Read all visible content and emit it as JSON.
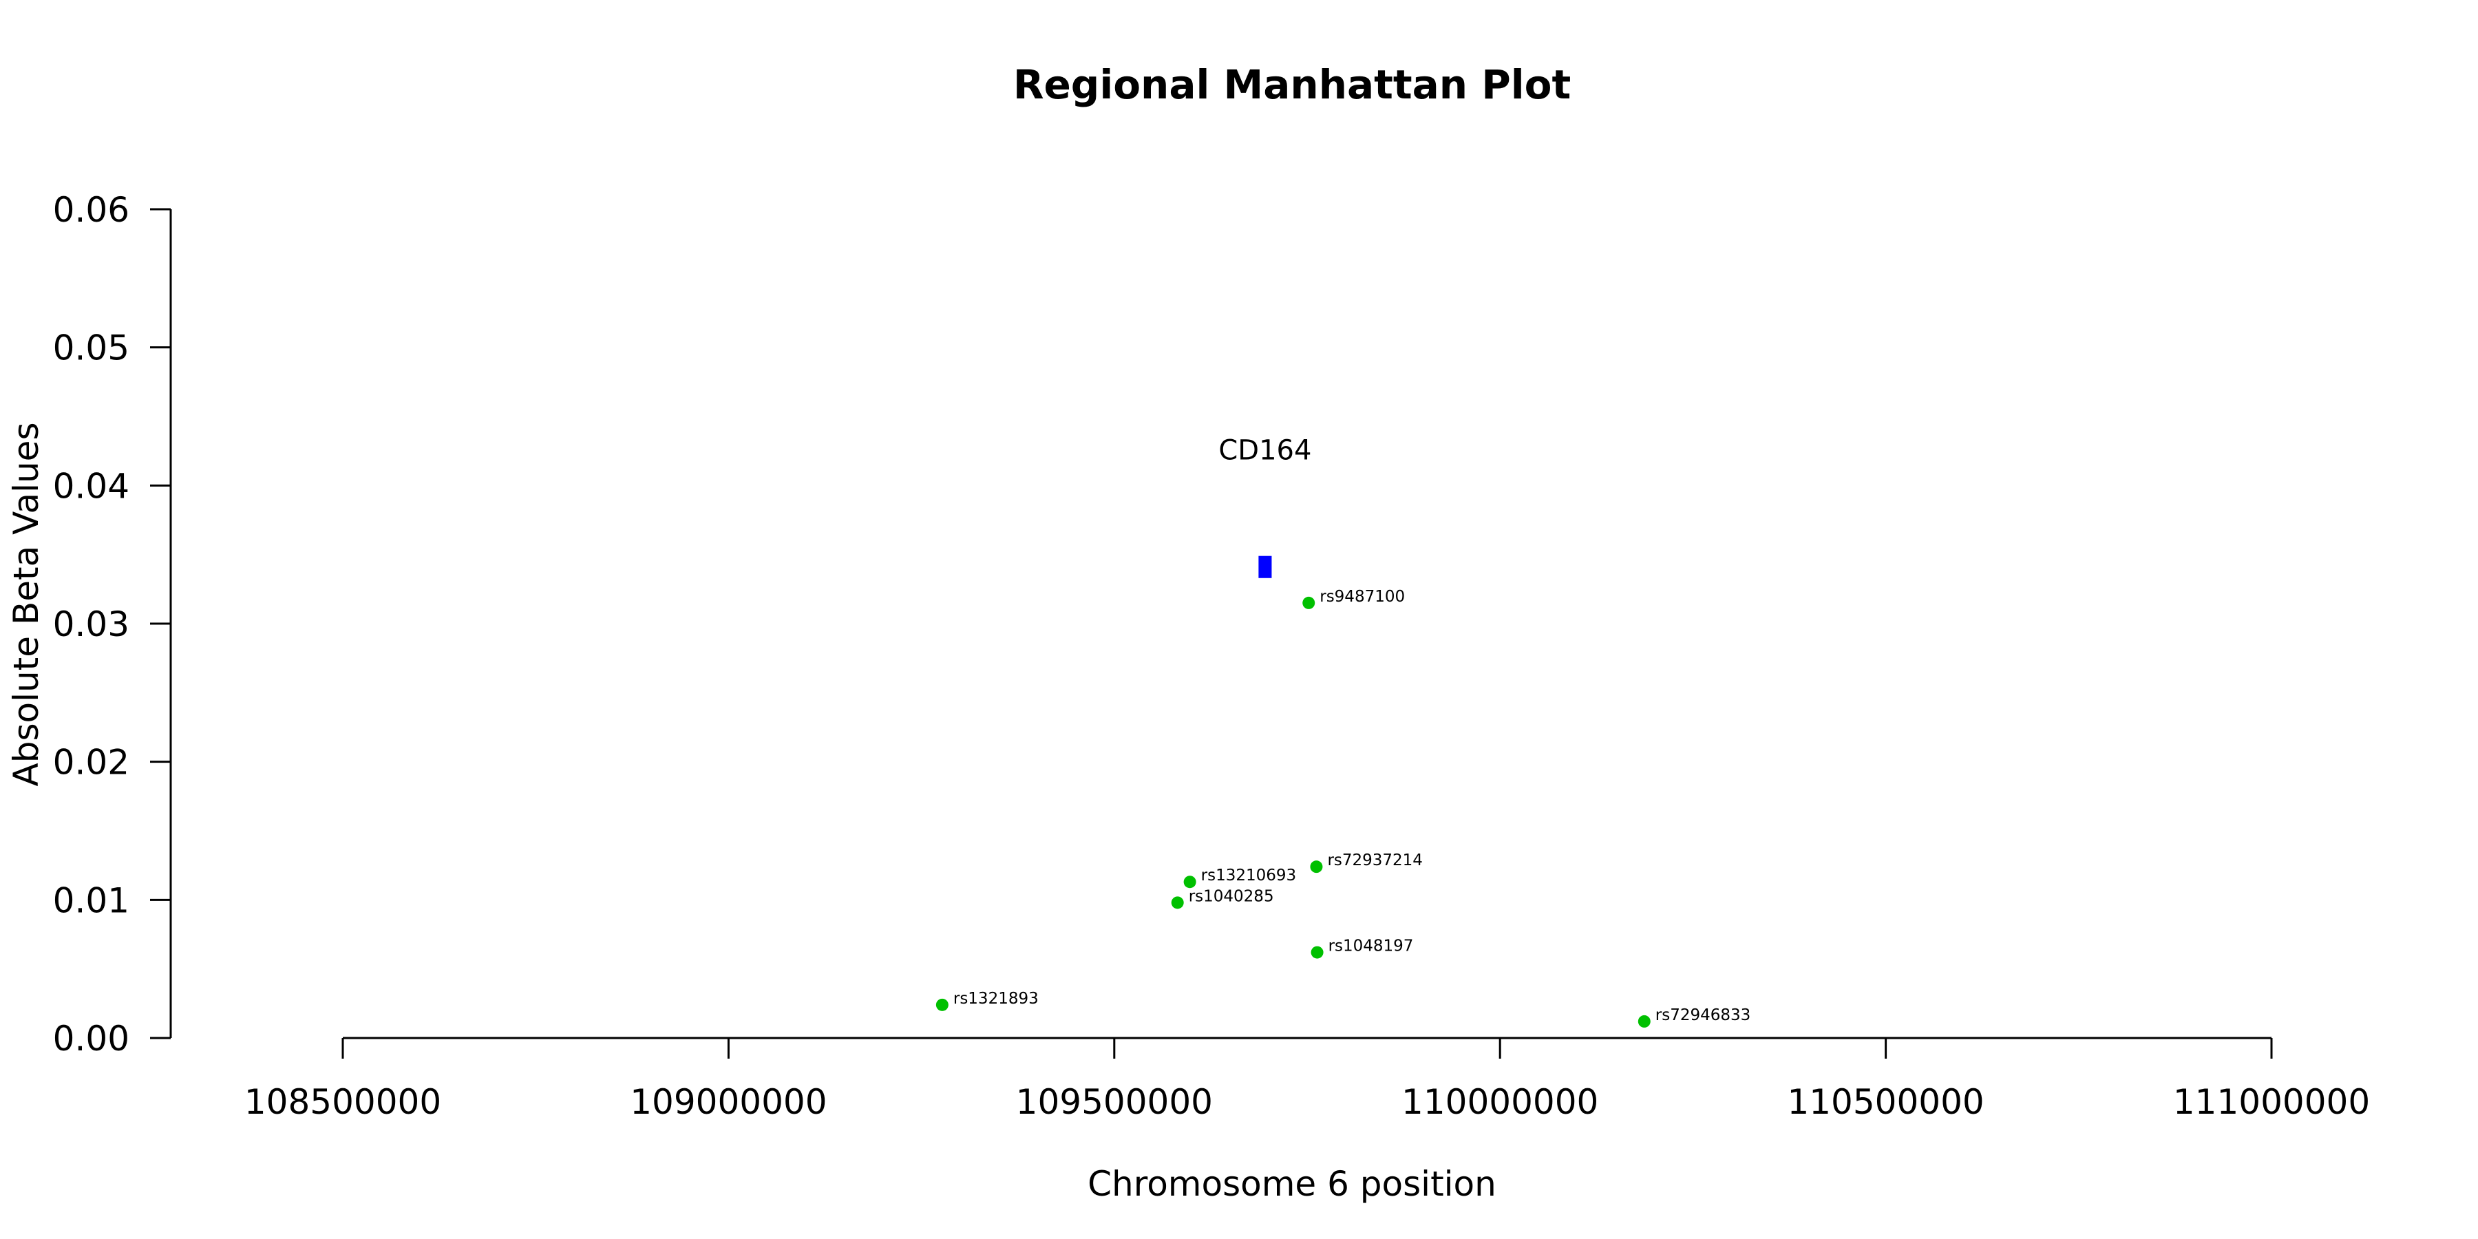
{
  "chart_data": {
    "type": "scatter",
    "title": "Regional Manhattan Plot",
    "xlabel": "Chromosome 6 position",
    "ylabel": "Absolute Beta Values",
    "xlim": [
      108500000,
      111000000
    ],
    "ylim": [
      0,
      0.06
    ],
    "x_ticks": [
      108500000,
      109000000,
      109500000,
      110000000,
      110500000,
      111000000
    ],
    "x_tick_labels": [
      "108500000",
      "109000000",
      "109500000",
      "110000000",
      "110500000",
      "111000000"
    ],
    "y_ticks": [
      0,
      0.01,
      0.02,
      0.03,
      0.04,
      0.05,
      0.06
    ],
    "y_tick_labels": [
      "0.00",
      "0.01",
      "0.02",
      "0.03",
      "0.04",
      "0.05",
      "0.06"
    ],
    "grid": false,
    "legend": "none",
    "colors": {
      "snp": "#00c000",
      "gene": "#0000ff"
    },
    "gene": {
      "name": "CD164",
      "x_start": 109687000,
      "x_end": 109704000,
      "y_low": 0.0333,
      "y_high": 0.0349
    },
    "points": [
      {
        "id": "rs9487100",
        "x": 109752000,
        "y": 0.0315
      },
      {
        "id": "rs72937214",
        "x": 109762000,
        "y": 0.0124
      },
      {
        "id": "rs13210693",
        "x": 109598000,
        "y": 0.0113
      },
      {
        "id": "rs1040285",
        "x": 109582000,
        "y": 0.0098
      },
      {
        "id": "rs1048197",
        "x": 109763000,
        "y": 0.0062
      },
      {
        "id": "rs1321893",
        "x": 109277000,
        "y": 0.0024
      },
      {
        "id": "rs72946833",
        "x": 110187000,
        "y": 0.0012
      }
    ]
  }
}
